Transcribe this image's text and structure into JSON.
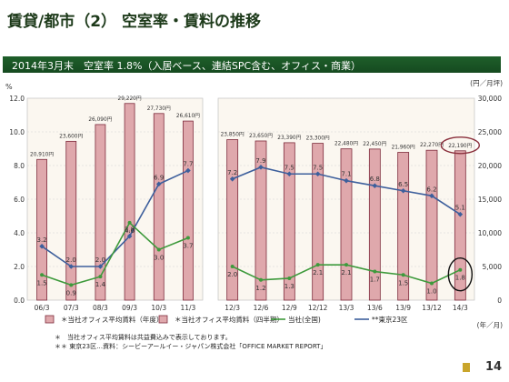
{
  "page": {
    "title": "賃貸/都市（2） 空室率・賃料の推移",
    "page_number": "14"
  },
  "subtitle": "2014年3月末　空室率 1.8%（入居ベース、連結SPC含む、オフィス・商業）",
  "footnotes": [
    "＊　当社オフィス平均賃料は共益費込みで表示しております。",
    "＊＊ 東京23区…資料：シービーアールイー・ジャパン株式会社「OFFICE MARKET REPORT」"
  ],
  "colors": {
    "bar_fill": "#dfa8ac",
    "bar_stroke": "#7e2b3c",
    "line_green": "#3e9a3c",
    "line_blue": "#3d5f9c",
    "title_green": "#1f5f2a"
  },
  "chart_data": {
    "type": "bar",
    "left_axis": {
      "unit_label": "%",
      "min": 0,
      "max": 12,
      "ticks": [
        "0.0",
        "2.0",
        "4.0",
        "6.0",
        "8.0",
        "10.0",
        "12.0"
      ]
    },
    "right_axis": {
      "unit_label": "(円／月坪)",
      "min": 0,
      "max": 30000,
      "ticks": [
        "0",
        "5,000",
        "10,000",
        "15,000",
        "20,000",
        "25,000",
        "30,000"
      ]
    },
    "x_axis_unit": "(年／月)",
    "panels": [
      {
        "categories": [
          "06/3",
          "07/3",
          "08/3",
          "09/3",
          "10/3",
          "11/3"
        ],
        "rent_values": [
          20910,
          23600,
          26090,
          29220,
          27730,
          26610
        ],
        "rent_labels": [
          "20,910円",
          "23,600円",
          "26,090円",
          "29,220円",
          "27,730円",
          "26,610円"
        ],
        "vacancy_company": [
          1.5,
          0.9,
          1.4,
          4.6,
          3.0,
          3.7
        ],
        "vacancy_company_labels": [
          "1.5",
          "0.9",
          "1.4",
          "4.6",
          "3.0",
          "3.7"
        ],
        "vacancy_tokyo": [
          3.2,
          2.0,
          2.0,
          3.8,
          6.9,
          7.7
        ],
        "vacancy_tokyo_labels": [
          "3.2",
          "2.0",
          "2.0",
          "3.8",
          "6.9",
          "7.7"
        ]
      },
      {
        "categories": [
          "12/3",
          "12/6",
          "12/9",
          "12/12",
          "13/3",
          "13/6",
          "13/9",
          "13/12",
          "14/3"
        ],
        "rent_values": [
          23850,
          23650,
          23390,
          23300,
          22480,
          22450,
          21960,
          22270,
          22190
        ],
        "rent_labels": [
          "23,850円",
          "23,650円",
          "23,390円",
          "23,300円",
          "22,480円",
          "22,450円",
          "21,960円",
          "22,270円",
          "22,190円"
        ],
        "vacancy_company": [
          2.0,
          1.2,
          1.3,
          2.1,
          2.1,
          1.7,
          1.5,
          1.0,
          1.8
        ],
        "vacancy_company_labels": [
          "2.0",
          "1.2",
          "1.3",
          "2.1",
          "2.1",
          "1.7",
          "1.5",
          "1.0",
          "1.8"
        ],
        "vacancy_tokyo": [
          7.2,
          7.9,
          7.5,
          7.5,
          7.1,
          6.8,
          6.5,
          6.2,
          5.1
        ],
        "vacancy_tokyo_labels": [
          "7.2",
          "7.9",
          "7.5",
          "7.5",
          "7.1",
          "6.8",
          "6.5",
          "6.2",
          "5.1"
        ]
      }
    ],
    "legend": [
      {
        "marker": "bar",
        "label": "＊当社オフィス平均賃料（年度）"
      },
      {
        "marker": "bar",
        "label": "＊当社オフィス平均賃料（四半期）"
      },
      {
        "marker": "line-green",
        "label": "当社(全国)"
      },
      {
        "marker": "line-blue",
        "label": "**東京23区"
      }
    ]
  }
}
